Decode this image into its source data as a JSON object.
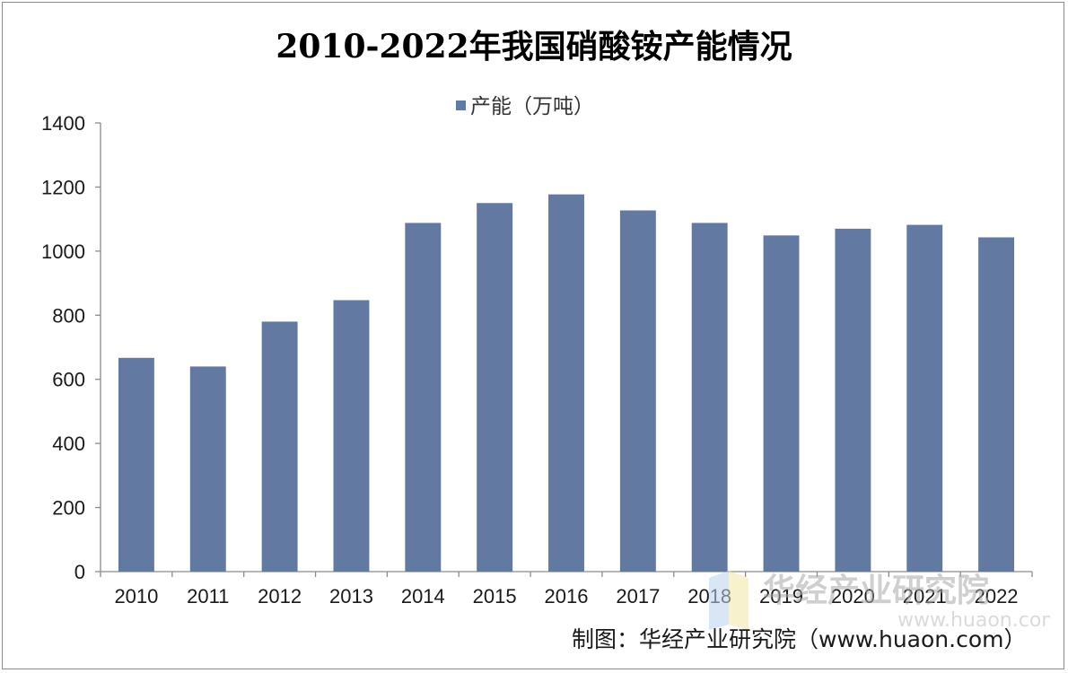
{
  "chart_data": {
    "type": "bar",
    "title": "2010-2022年我国硝酸铵产能情况",
    "categories": [
      "2010",
      "2011",
      "2012",
      "2013",
      "2014",
      "2015",
      "2016",
      "2017",
      "2018",
      "2019",
      "2020",
      "2021",
      "2022"
    ],
    "series": [
      {
        "name": "产能（万吨）",
        "values": [
          667,
          640,
          780,
          847,
          1088,
          1150,
          1177,
          1127,
          1088,
          1049,
          1070,
          1082,
          1043
        ]
      }
    ],
    "ylim": [
      0,
      1400
    ],
    "yticks": [
      0,
      200,
      400,
      600,
      800,
      1000,
      1200,
      1400
    ],
    "grid": false,
    "legend_position": "top-center",
    "bar_color": "#6279a2"
  },
  "credit": "制图：华经产业研究院（www.huaon.com）",
  "watermark": {
    "text_cn": "华经产业研究院",
    "text_url": "www.huaon.com"
  }
}
